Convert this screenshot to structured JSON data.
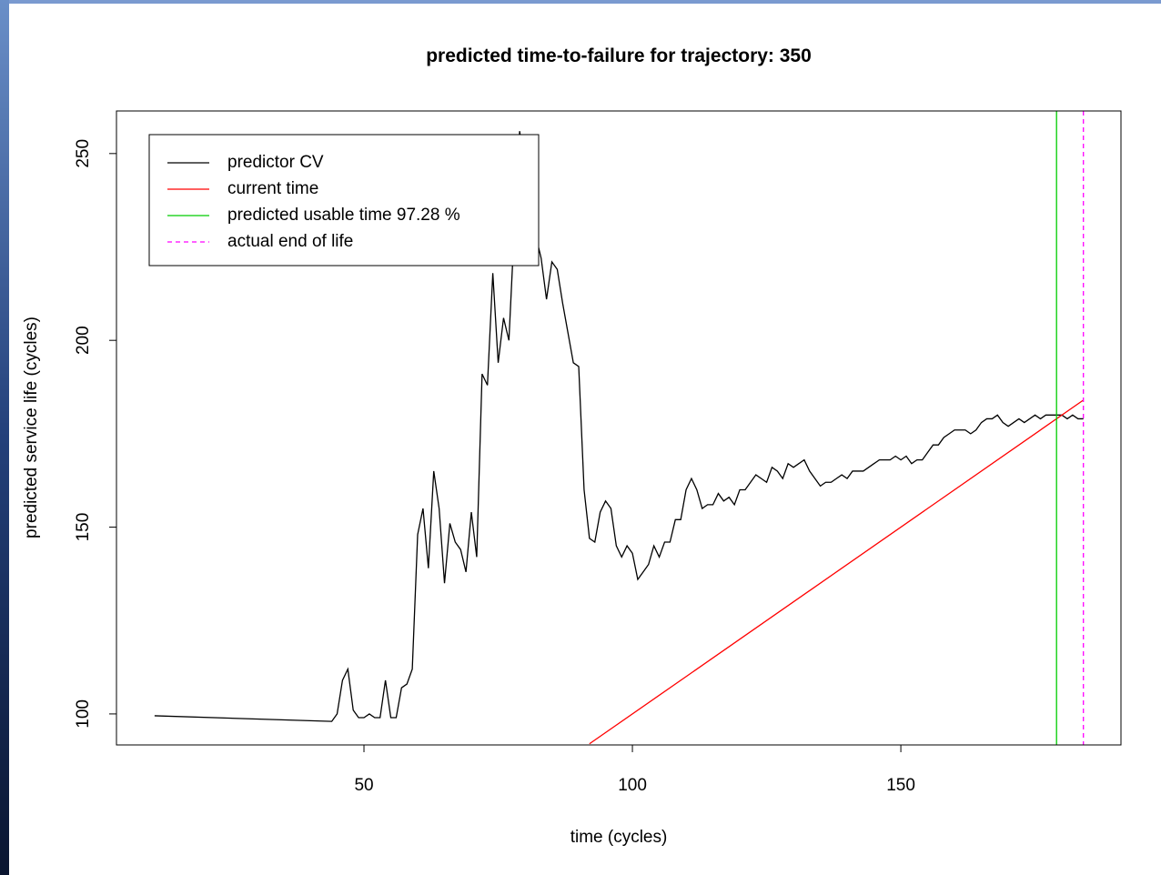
{
  "chart_data": {
    "type": "line",
    "title": "predicted time-to-failure for trajectory: 350",
    "xlabel": "time (cycles)",
    "ylabel": "predicted service life (cycles)",
    "xlim": [
      3.9,
      191
    ],
    "ylim": [
      91.7,
      261.4
    ],
    "xticks": [
      50,
      100,
      150
    ],
    "yticks": [
      100,
      150,
      200,
      250
    ],
    "legend": "topleft",
    "series": [
      {
        "name": "predictor CV",
        "color": "#000000",
        "x": [
          11,
          44,
          45,
          46,
          47,
          48,
          49,
          50,
          51,
          52,
          53,
          54,
          55,
          56,
          57,
          58,
          59,
          60,
          61,
          62,
          63,
          64,
          65,
          66,
          67,
          68,
          69,
          70,
          71,
          72,
          73,
          74,
          75,
          76,
          77,
          78,
          79,
          80,
          81,
          82,
          83,
          84,
          85,
          86,
          87,
          88,
          89,
          90,
          91,
          92,
          93,
          94,
          95,
          96,
          97,
          98,
          99,
          100,
          101,
          102,
          103,
          104,
          105,
          106,
          107,
          108,
          109,
          110,
          111,
          112,
          113,
          114,
          115,
          116,
          117,
          118,
          119,
          120,
          121,
          122,
          123,
          124,
          125,
          126,
          127,
          128,
          129,
          130,
          131,
          132,
          133,
          134,
          135,
          136,
          137,
          138,
          139,
          140,
          141,
          142,
          143,
          144,
          145,
          146,
          147,
          148,
          149,
          150,
          151,
          152,
          153,
          154,
          155,
          156,
          157,
          158,
          159,
          160,
          161,
          162,
          163,
          164,
          165,
          166,
          167,
          168,
          169,
          170,
          171,
          172,
          173,
          174,
          175,
          176,
          177,
          178,
          179,
          180,
          181,
          182,
          183,
          184
        ],
        "values": [
          99.5,
          98,
          100,
          109,
          112,
          101,
          99,
          99,
          100,
          99,
          99,
          109,
          99,
          99,
          107,
          108,
          112,
          148,
          155,
          139,
          165,
          155,
          135,
          151,
          146,
          144,
          138,
          154,
          142,
          191,
          188,
          218,
          194,
          206,
          200,
          230,
          256,
          245,
          235,
          228,
          222,
          211,
          221,
          219,
          210,
          202,
          194,
          193,
          160,
          147,
          146,
          154,
          157,
          155,
          145,
          142,
          145,
          143,
          136,
          138,
          140,
          145,
          142,
          146,
          146,
          152,
          152,
          160,
          163,
          160,
          155,
          156,
          156,
          159,
          157,
          158,
          156,
          160,
          160,
          162,
          164,
          163,
          162,
          166,
          165,
          163,
          167,
          166,
          167,
          168,
          165,
          163,
          161,
          162,
          162,
          163,
          164,
          163,
          165,
          165,
          165,
          166,
          167,
          168,
          168,
          168,
          169,
          168,
          169,
          167,
          168,
          168,
          170,
          172,
          172,
          174,
          175,
          176,
          176,
          176,
          175,
          176,
          178,
          179,
          179,
          180,
          178,
          177,
          178,
          179,
          178,
          179,
          180,
          179,
          180,
          180,
          180,
          180,
          179,
          180,
          179,
          179
        ]
      },
      {
        "name": "current time",
        "color": "#ff0000",
        "x": [
          92,
          184
        ],
        "values": [
          92,
          184
        ]
      },
      {
        "name": "predicted usable time 97.28 %",
        "color": "#00cc00",
        "vline": 179
      },
      {
        "name": "actual end of life",
        "color": "#ff00ff",
        "vline": 184,
        "dash": true
      }
    ]
  }
}
